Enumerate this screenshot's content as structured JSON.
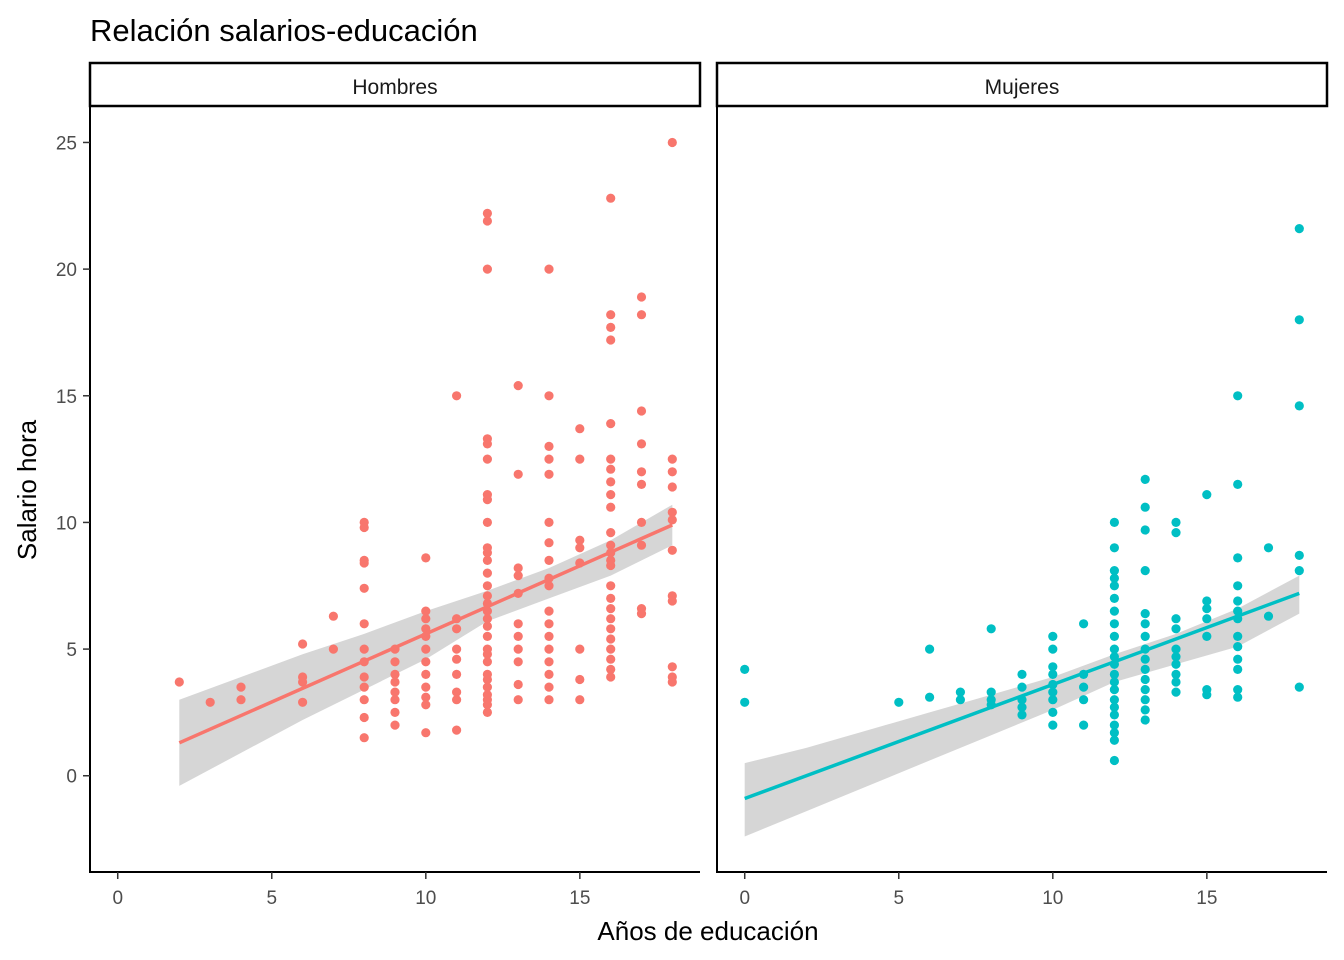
{
  "chart_data": {
    "type": "scatter",
    "title": "Relación salarios-educación",
    "xlabel": "Años de educación",
    "ylabel": "Salario hora",
    "xlim": [
      -0.9,
      18.9
    ],
    "ylim": [
      -3.8,
      26.4
    ],
    "x_ticks": [
      0,
      5,
      10,
      15
    ],
    "y_ticks": [
      0,
      5,
      10,
      15,
      20,
      25
    ],
    "x_tick_labels": [
      "0",
      "5",
      "10",
      "15"
    ],
    "y_tick_labels": [
      "0",
      "5",
      "10",
      "15",
      "20",
      "25"
    ],
    "grid": false,
    "legend": "none",
    "panels": [
      {
        "label": "Hombres",
        "color": "#F8766D",
        "fit_line": [
          [
            2,
            1.3
          ],
          [
            18,
            9.9
          ]
        ],
        "confidence_band": {
          "x": [
            2,
            4,
            6,
            8,
            10,
            12,
            14,
            16,
            18
          ],
          "upper": [
            3.0,
            3.9,
            4.8,
            5.6,
            6.5,
            7.3,
            8.2,
            9.3,
            10.7
          ],
          "lower": [
            -0.4,
            0.9,
            2.2,
            3.4,
            4.6,
            6.1,
            7.0,
            7.9,
            9.1
          ]
        },
        "points": [
          [
            2,
            3.7
          ],
          [
            3,
            2.9
          ],
          [
            4,
            3.5
          ],
          [
            4,
            3.0
          ],
          [
            6,
            5.2
          ],
          [
            6,
            3.9
          ],
          [
            6,
            3.7
          ],
          [
            6,
            2.9
          ],
          [
            7,
            6.3
          ],
          [
            7,
            5.0
          ],
          [
            8,
            10.0
          ],
          [
            8,
            9.8
          ],
          [
            8,
            8.5
          ],
          [
            8,
            8.4
          ],
          [
            8,
            7.4
          ],
          [
            8,
            6.0
          ],
          [
            8,
            5.0
          ],
          [
            8,
            4.5
          ],
          [
            8,
            3.9
          ],
          [
            8,
            3.5
          ],
          [
            8,
            3.0
          ],
          [
            8,
            2.3
          ],
          [
            8,
            1.5
          ],
          [
            9,
            5.0
          ],
          [
            9,
            4.5
          ],
          [
            9,
            4.0
          ],
          [
            9,
            3.7
          ],
          [
            9,
            3.3
          ],
          [
            9,
            3.0
          ],
          [
            9,
            2.5
          ],
          [
            9,
            2.0
          ],
          [
            10,
            8.6
          ],
          [
            10,
            6.5
          ],
          [
            10,
            6.2
          ],
          [
            10,
            5.8
          ],
          [
            10,
            5.5
          ],
          [
            10,
            5.0
          ],
          [
            10,
            4.5
          ],
          [
            10,
            4.0
          ],
          [
            10,
            3.5
          ],
          [
            10,
            3.1
          ],
          [
            10,
            2.8
          ],
          [
            10,
            1.7
          ],
          [
            11,
            15.0
          ],
          [
            11,
            6.2
          ],
          [
            11,
            5.8
          ],
          [
            11,
            5.0
          ],
          [
            11,
            4.6
          ],
          [
            11,
            4.0
          ],
          [
            11,
            3.3
          ],
          [
            11,
            3.0
          ],
          [
            11,
            1.8
          ],
          [
            12,
            22.2
          ],
          [
            12,
            21.9
          ],
          [
            12,
            20.0
          ],
          [
            12,
            13.3
          ],
          [
            12,
            13.1
          ],
          [
            12,
            12.5
          ],
          [
            12,
            11.1
          ],
          [
            12,
            10.9
          ],
          [
            12,
            10.0
          ],
          [
            12,
            9.0
          ],
          [
            12,
            8.8
          ],
          [
            12,
            8.5
          ],
          [
            12,
            8.0
          ],
          [
            12,
            7.5
          ],
          [
            12,
            7.1
          ],
          [
            12,
            6.8
          ],
          [
            12,
            6.5
          ],
          [
            12,
            6.2
          ],
          [
            12,
            5.9
          ],
          [
            12,
            5.5
          ],
          [
            12,
            5.0
          ],
          [
            12,
            4.8
          ],
          [
            12,
            4.5
          ],
          [
            12,
            4.0
          ],
          [
            12,
            3.8
          ],
          [
            12,
            3.5
          ],
          [
            12,
            3.2
          ],
          [
            12,
            3.0
          ],
          [
            12,
            2.8
          ],
          [
            12,
            2.5
          ],
          [
            13,
            15.4
          ],
          [
            13,
            11.9
          ],
          [
            13,
            8.2
          ],
          [
            13,
            7.9
          ],
          [
            13,
            7.2
          ],
          [
            13,
            6.0
          ],
          [
            13,
            5.5
          ],
          [
            13,
            5.0
          ],
          [
            13,
            4.5
          ],
          [
            13,
            3.6
          ],
          [
            13,
            3.0
          ],
          [
            14,
            20.0
          ],
          [
            14,
            15.0
          ],
          [
            14,
            13.0
          ],
          [
            14,
            12.5
          ],
          [
            14,
            11.9
          ],
          [
            14,
            10.0
          ],
          [
            14,
            9.2
          ],
          [
            14,
            8.5
          ],
          [
            14,
            7.8
          ],
          [
            14,
            7.5
          ],
          [
            14,
            6.5
          ],
          [
            14,
            6.0
          ],
          [
            14,
            5.5
          ],
          [
            14,
            5.0
          ],
          [
            14,
            4.5
          ],
          [
            14,
            4.0
          ],
          [
            14,
            3.5
          ],
          [
            14,
            3.0
          ],
          [
            15,
            13.7
          ],
          [
            15,
            12.5
          ],
          [
            15,
            9.3
          ],
          [
            15,
            9.0
          ],
          [
            15,
            8.4
          ],
          [
            15,
            5.0
          ],
          [
            15,
            3.8
          ],
          [
            15,
            3.0
          ],
          [
            16,
            22.8
          ],
          [
            16,
            18.2
          ],
          [
            16,
            17.7
          ],
          [
            16,
            17.2
          ],
          [
            16,
            13.9
          ],
          [
            16,
            12.5
          ],
          [
            16,
            12.1
          ],
          [
            16,
            11.6
          ],
          [
            16,
            11.1
          ],
          [
            16,
            10.6
          ],
          [
            16,
            9.6
          ],
          [
            16,
            9.1
          ],
          [
            16,
            8.8
          ],
          [
            16,
            8.5
          ],
          [
            16,
            8.3
          ],
          [
            16,
            7.5
          ],
          [
            16,
            7.0
          ],
          [
            16,
            6.6
          ],
          [
            16,
            6.2
          ],
          [
            16,
            5.8
          ],
          [
            16,
            5.4
          ],
          [
            16,
            5.0
          ],
          [
            16,
            4.6
          ],
          [
            16,
            4.2
          ],
          [
            16,
            3.9
          ],
          [
            17,
            18.9
          ],
          [
            17,
            18.2
          ],
          [
            17,
            14.4
          ],
          [
            17,
            13.1
          ],
          [
            17,
            12.0
          ],
          [
            17,
            11.5
          ],
          [
            17,
            10.0
          ],
          [
            17,
            9.1
          ],
          [
            17,
            6.6
          ],
          [
            17,
            6.4
          ],
          [
            18,
            25.0
          ],
          [
            18,
            12.5
          ],
          [
            18,
            12.0
          ],
          [
            18,
            11.4
          ],
          [
            18,
            10.4
          ],
          [
            18,
            10.1
          ],
          [
            18,
            8.9
          ],
          [
            18,
            7.1
          ],
          [
            18,
            6.9
          ],
          [
            18,
            4.3
          ],
          [
            18,
            3.9
          ],
          [
            18,
            3.7
          ]
        ]
      },
      {
        "label": "Mujeres",
        "color": "#00BFC4",
        "fit_line": [
          [
            0,
            -0.9
          ],
          [
            18,
            7.2
          ]
        ],
        "confidence_band": {
          "x": [
            0,
            2,
            4,
            6,
            8,
            10,
            12,
            14,
            16,
            18
          ],
          "upper": [
            0.5,
            1.1,
            1.8,
            2.5,
            3.2,
            3.9,
            4.8,
            5.6,
            6.6,
            7.9
          ],
          "lower": [
            -2.4,
            -1.4,
            -0.4,
            0.6,
            1.6,
            2.6,
            3.7,
            4.4,
            5.1,
            6.4
          ]
        },
        "points": [
          [
            0,
            4.2
          ],
          [
            0,
            2.9
          ],
          [
            5,
            2.9
          ],
          [
            6,
            5.0
          ],
          [
            6,
            3.1
          ],
          [
            7,
            3.3
          ],
          [
            7,
            3.0
          ],
          [
            8,
            5.8
          ],
          [
            8,
            3.3
          ],
          [
            8,
            3.0
          ],
          [
            8,
            2.8
          ],
          [
            9,
            4.0
          ],
          [
            9,
            3.5
          ],
          [
            9,
            3.0
          ],
          [
            9,
            2.7
          ],
          [
            9,
            2.4
          ],
          [
            10,
            5.5
          ],
          [
            10,
            5.0
          ],
          [
            10,
            4.3
          ],
          [
            10,
            4.0
          ],
          [
            10,
            3.6
          ],
          [
            10,
            3.3
          ],
          [
            10,
            3.0
          ],
          [
            10,
            2.5
          ],
          [
            10,
            2.0
          ],
          [
            11,
            6.0
          ],
          [
            11,
            4.0
          ],
          [
            11,
            3.5
          ],
          [
            11,
            3.0
          ],
          [
            11,
            2.0
          ],
          [
            12,
            10.0
          ],
          [
            12,
            9.0
          ],
          [
            12,
            8.1
          ],
          [
            12,
            7.8
          ],
          [
            12,
            7.5
          ],
          [
            12,
            7.0
          ],
          [
            12,
            6.5
          ],
          [
            12,
            6.0
          ],
          [
            12,
            5.5
          ],
          [
            12,
            5.0
          ],
          [
            12,
            4.7
          ],
          [
            12,
            4.4
          ],
          [
            12,
            4.0
          ],
          [
            12,
            3.7
          ],
          [
            12,
            3.4
          ],
          [
            12,
            3.0
          ],
          [
            12,
            2.7
          ],
          [
            12,
            2.4
          ],
          [
            12,
            2.0
          ],
          [
            12,
            1.7
          ],
          [
            12,
            1.4
          ],
          [
            12,
            0.6
          ],
          [
            13,
            11.7
          ],
          [
            13,
            10.6
          ],
          [
            13,
            9.7
          ],
          [
            13,
            8.1
          ],
          [
            13,
            6.4
          ],
          [
            13,
            6.0
          ],
          [
            13,
            5.5
          ],
          [
            13,
            5.0
          ],
          [
            13,
            4.6
          ],
          [
            13,
            4.2
          ],
          [
            13,
            3.8
          ],
          [
            13,
            3.4
          ],
          [
            13,
            3.0
          ],
          [
            13,
            2.6
          ],
          [
            13,
            2.2
          ],
          [
            14,
            10.0
          ],
          [
            14,
            9.6
          ],
          [
            14,
            6.2
          ],
          [
            14,
            5.8
          ],
          [
            14,
            5.0
          ],
          [
            14,
            4.7
          ],
          [
            14,
            4.4
          ],
          [
            14,
            4.0
          ],
          [
            14,
            3.7
          ],
          [
            14,
            3.3
          ],
          [
            15,
            11.1
          ],
          [
            15,
            6.9
          ],
          [
            15,
            6.6
          ],
          [
            15,
            6.2
          ],
          [
            15,
            5.5
          ],
          [
            15,
            3.4
          ],
          [
            15,
            3.2
          ],
          [
            16,
            15.0
          ],
          [
            16,
            11.5
          ],
          [
            16,
            8.6
          ],
          [
            16,
            7.5
          ],
          [
            16,
            6.9
          ],
          [
            16,
            6.5
          ],
          [
            16,
            6.2
          ],
          [
            16,
            5.5
          ],
          [
            16,
            5.1
          ],
          [
            16,
            4.6
          ],
          [
            16,
            4.2
          ],
          [
            16,
            3.4
          ],
          [
            16,
            3.1
          ],
          [
            17,
            9.0
          ],
          [
            17,
            6.3
          ],
          [
            18,
            21.6
          ],
          [
            18,
            18.0
          ],
          [
            18,
            14.6
          ],
          [
            18,
            8.7
          ],
          [
            18,
            8.1
          ],
          [
            18,
            3.5
          ]
        ]
      }
    ]
  }
}
